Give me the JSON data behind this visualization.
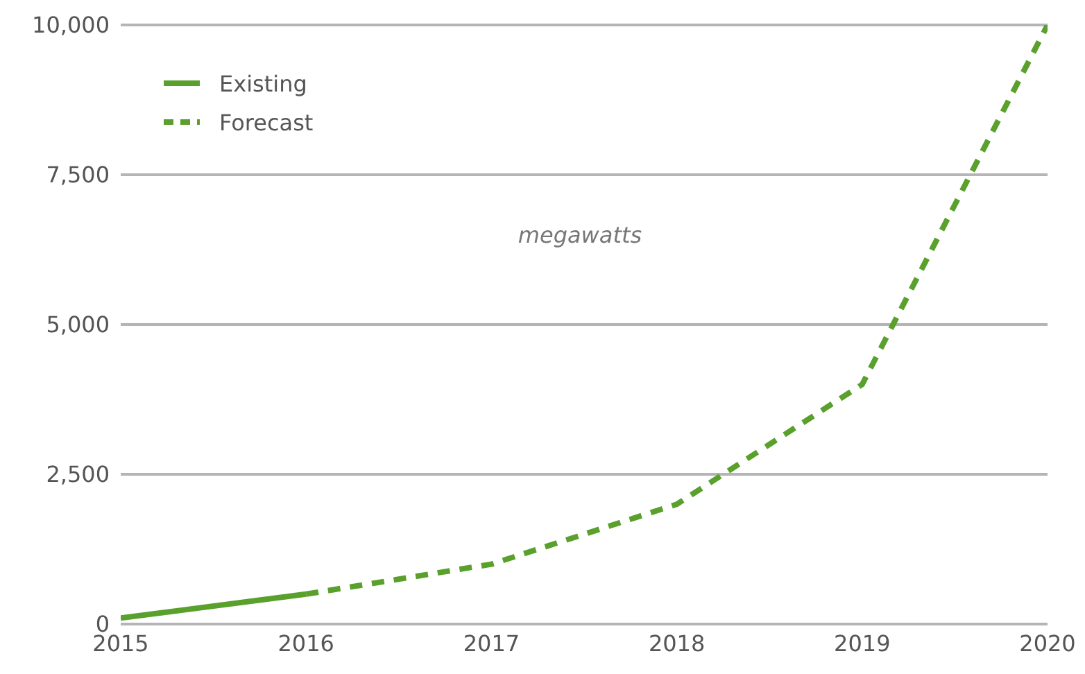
{
  "chart_data": {
    "type": "line",
    "annotations": [
      "megawatts"
    ],
    "series": [
      {
        "name": "Existing",
        "color": "#5aa02c",
        "line_style": "solid",
        "x": [
          2015,
          2016
        ],
        "values": [
          100,
          500
        ]
      },
      {
        "name": "Forecast",
        "color": "#5aa02c",
        "line_style": "dashed",
        "x": [
          2016,
          2017,
          2018,
          2019,
          2020
        ],
        "values": [
          500,
          1000,
          2000,
          4000,
          10000
        ]
      }
    ],
    "xlim": [
      2015,
      2020
    ],
    "xticks": [
      2015,
      2016,
      2017,
      2018,
      2019,
      2020
    ],
    "ylim": [
      0,
      10000
    ],
    "yticks": [
      0,
      {
        "value": 2500,
        "label": "2,500"
      },
      {
        "value": 5000,
        "label": "5,000"
      },
      {
        "value": 7500,
        "label": "7,500"
      },
      {
        "value": 10000,
        "label": "10,000"
      }
    ],
    "grid": "y",
    "legend": "top left",
    "marker": "none"
  }
}
